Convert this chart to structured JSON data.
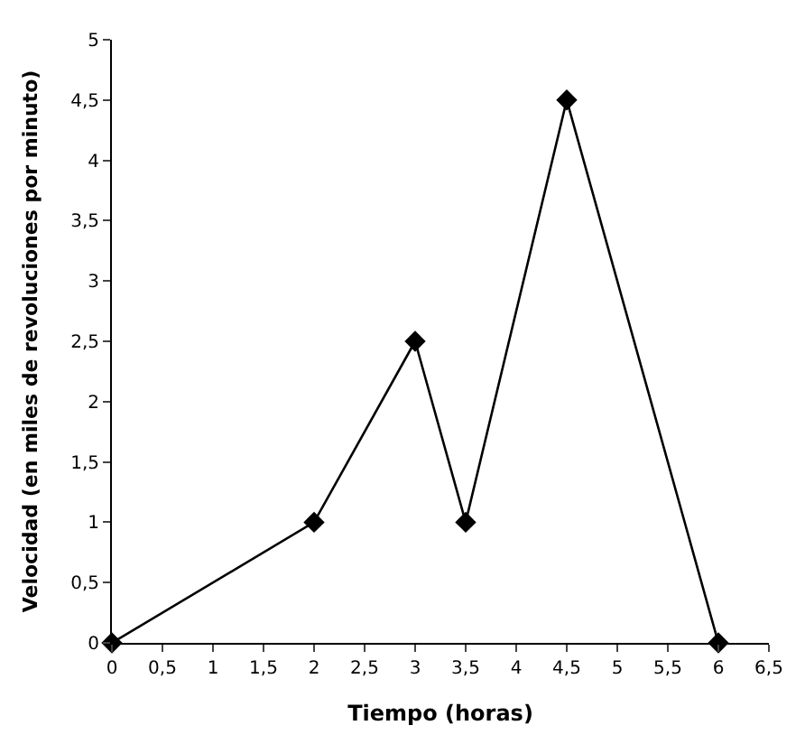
{
  "chart_data": {
    "type": "line",
    "xlabel": "Tiempo (horas)",
    "ylabel": "Velocidad (en miles de revoluciones por minuto)",
    "x": [
      0,
      2,
      3,
      3.5,
      4.5,
      6
    ],
    "series": [
      {
        "color": "#000000",
        "values": [
          0,
          1,
          2.5,
          1,
          4.5,
          0
        ]
      }
    ],
    "xlim": [
      0,
      6.5
    ],
    "ylim": [
      0,
      5
    ],
    "xticks": [
      0,
      {
        "value": 0.5,
        "label": "0,5"
      },
      1,
      {
        "value": 1.5,
        "label": "1,5"
      },
      2,
      {
        "value": 2.5,
        "label": "2,5"
      },
      3,
      {
        "value": 3.5,
        "label": "3,5"
      },
      4,
      {
        "value": 4.5,
        "label": "4,5"
      },
      5,
      {
        "value": 5.5,
        "label": "5,5"
      },
      6,
      {
        "value": 6.5,
        "label": "6,5"
      }
    ],
    "yticks": [
      0,
      {
        "value": 0.5,
        "label": "0,5"
      },
      1,
      {
        "value": 1.5,
        "label": "1,5"
      },
      2,
      {
        "value": 2.5,
        "label": "2,5"
      },
      3,
      {
        "value": 3.5,
        "label": "3,5"
      },
      4,
      {
        "value": 4.5,
        "label": "4,5"
      },
      5
    ],
    "marker": "diamond",
    "line_style": "solid"
  }
}
